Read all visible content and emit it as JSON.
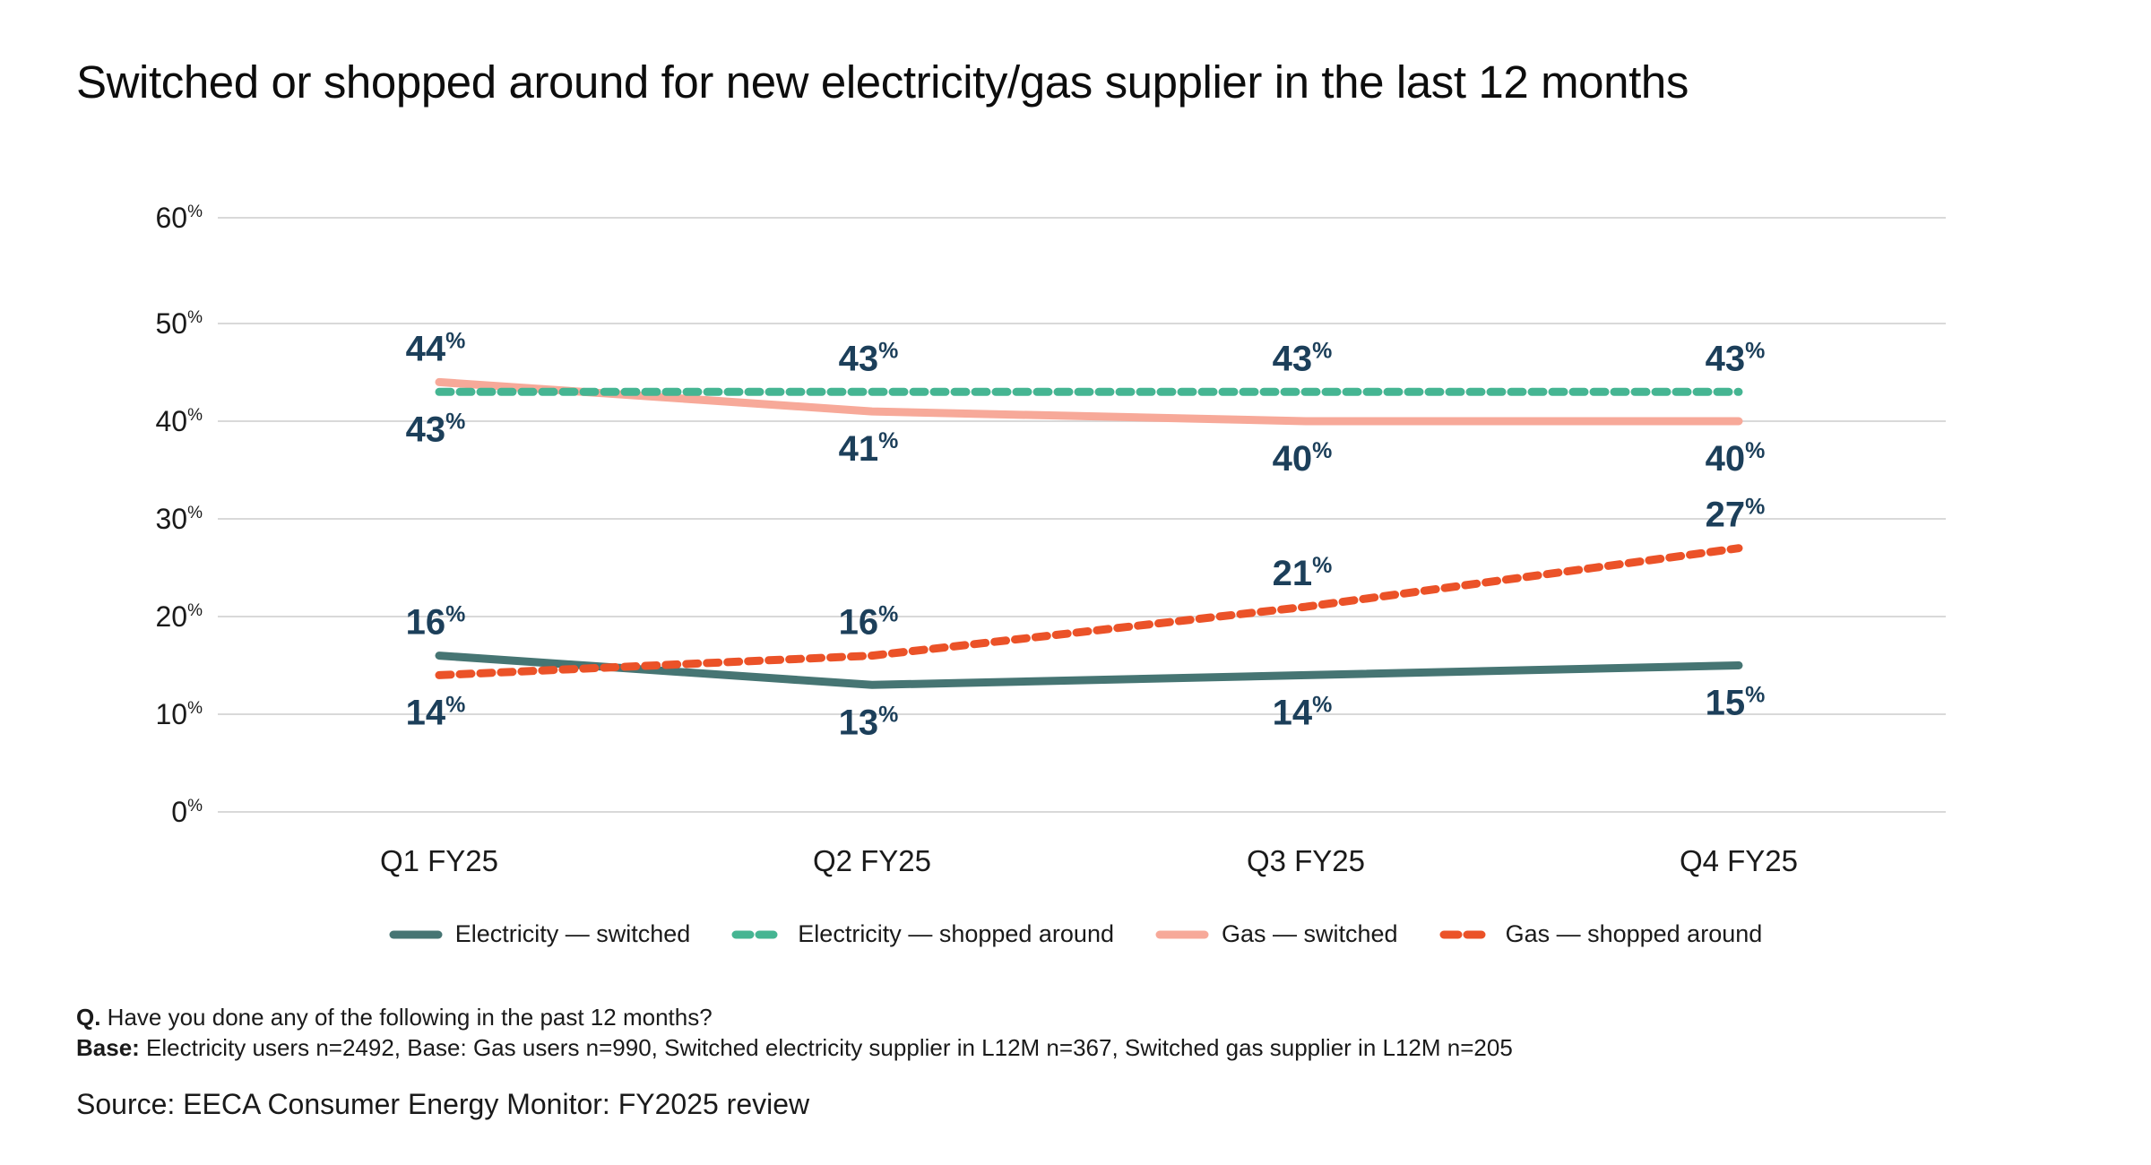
{
  "title": "Switched or shopped around for new electricity/gas supplier in the last 12 months",
  "colors": {
    "electricity_switched": "#467573",
    "electricity_shopped": "#45B592",
    "gas_switched": "#F7A999",
    "gas_shopped": "#EB5228",
    "data_label": "#1C3F5A",
    "grid": "#D9D9D9"
  },
  "chart_data": {
    "type": "line",
    "title": "Switched or shopped around for new electricity/gas supplier in the last 12 months",
    "xlabel": "",
    "ylabel": "",
    "categories": [
      "Q1 FY25",
      "Q2 FY25",
      "Q3 FY25",
      "Q4 FY25"
    ],
    "ylim": [
      0,
      60
    ],
    "yticks": [
      0,
      10,
      20,
      30,
      40,
      50,
      60
    ],
    "ytick_suffix": "%",
    "grid": true,
    "legend_position": "bottom",
    "series": [
      {
        "key": "electricity_switched",
        "name": "Electricity — switched",
        "style": "solid",
        "values": [
          16,
          13,
          14,
          15
        ]
      },
      {
        "key": "electricity_shopped",
        "name": "Electricity — shopped around",
        "style": "dashed",
        "values": [
          43,
          43,
          43,
          43
        ]
      },
      {
        "key": "gas_switched",
        "name": "Gas — switched",
        "style": "solid",
        "values": [
          44,
          41,
          40,
          40
        ]
      },
      {
        "key": "gas_shopped",
        "name": "Gas — shopped around",
        "style": "dashed",
        "values": [
          14,
          16,
          21,
          27
        ]
      }
    ]
  },
  "notes": {
    "question_label": "Q.",
    "question_text": " Have you done any of the following in the past 12 months?",
    "base_label": "Base:",
    "base_text": " Electricity users n=2492, Base: Gas users n=990, Switched electricity supplier in L12M n=367, Switched gas supplier in L12M n=205"
  },
  "source": "Source: EECA Consumer Energy Monitor: FY2025 review"
}
